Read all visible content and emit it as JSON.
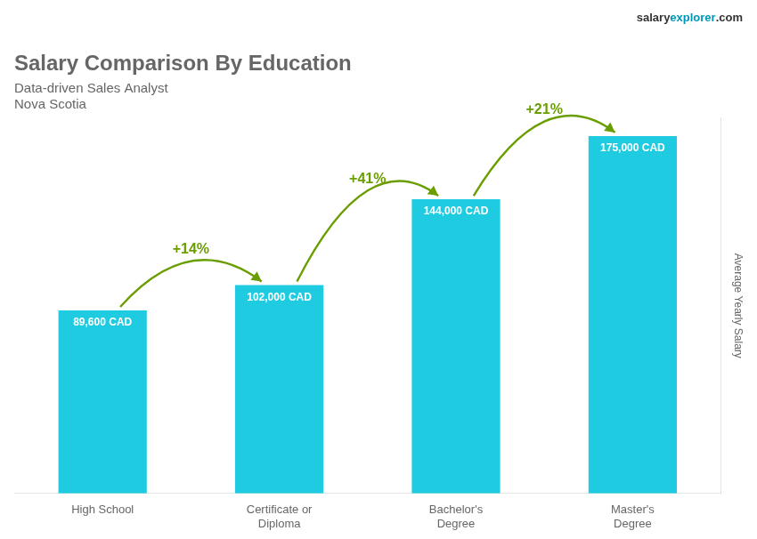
{
  "chart_data": {
    "type": "bar",
    "title": "Salary Comparison By Education",
    "subtitle": "Data-driven Sales Analyst",
    "location": "Nova Scotia",
    "categories": [
      "High School",
      "Certificate or\nDiploma",
      "Bachelor's\nDegree",
      "Master's\nDegree"
    ],
    "values": [
      89600,
      102000,
      144000,
      175000
    ],
    "value_labels": [
      "89,600 CAD",
      "102,000 CAD",
      "144,000 CAD",
      "175,000 CAD"
    ],
    "data_labels": true,
    "annotations": [
      "+14%",
      "+41%",
      "+21%"
    ],
    "ylabel": "Average Yearly Salary",
    "brand": [
      "salary",
      "explorer",
      ".com"
    ],
    "color": "#1ecbe1",
    "ylim": [
      0,
      183750
    ],
    "grid": false,
    "tick_labels": "x"
  }
}
